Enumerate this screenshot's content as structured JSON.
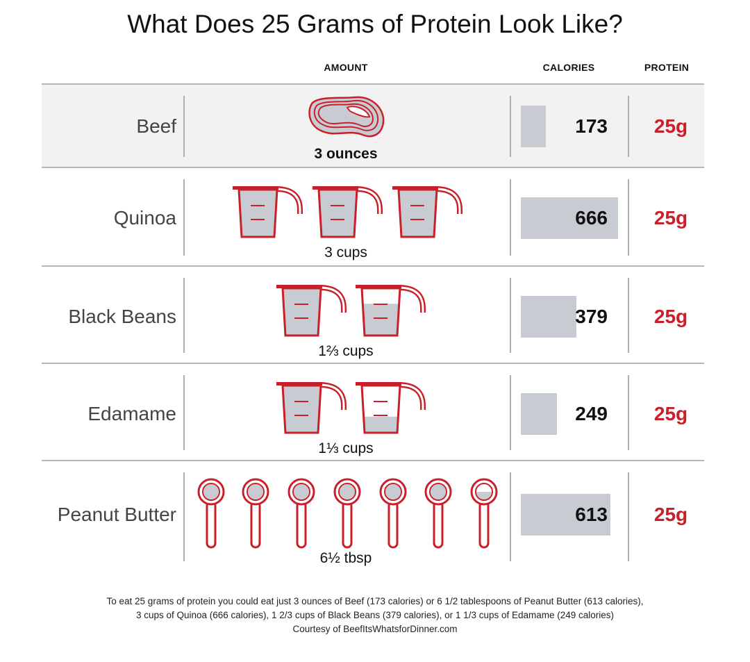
{
  "title": "What Does 25 Grams of Protein Look Like?",
  "headers": {
    "amount": "AMOUNT",
    "calories": "CALORIES",
    "protein": "PROTEIN"
  },
  "colors": {
    "accent_red": "#c8202a",
    "bar_gray": "#c8ccd2",
    "shaded_row": "#f2f2f2"
  },
  "chart_data": {
    "type": "bar",
    "title": "What Does 25 Grams of Protein Look Like?",
    "categories": [
      "Beef",
      "Quinoa",
      "Black Beans",
      "Edamame",
      "Peanut Butter"
    ],
    "series": [
      {
        "name": "CALORIES",
        "values": [
          173,
          666,
          379,
          249,
          613
        ]
      }
    ],
    "orientation": "horizontal",
    "grid": false
  },
  "rows": [
    {
      "food": "Beef",
      "amount": "3 ounces",
      "calories": "173",
      "protein": "25g",
      "icon": "steak-icon",
      "count": 1,
      "last_fill": 1
    },
    {
      "food": "Quinoa",
      "amount": "3 cups",
      "calories": "666",
      "protein": "25g",
      "icon": "measuring-cup-icon",
      "count": 3,
      "last_fill": 1
    },
    {
      "food": "Black Beans",
      "amount": "1⅔ cups",
      "calories": "379",
      "protein": "25g",
      "icon": "measuring-cup-icon",
      "count": 2,
      "last_fill": 0.667
    },
    {
      "food": "Edamame",
      "amount": "1⅓ cups",
      "calories": "249",
      "protein": "25g",
      "icon": "measuring-cup-icon",
      "count": 2,
      "last_fill": 0.333
    },
    {
      "food": "Peanut Butter",
      "amount": "6½ tbsp",
      "calories": "613",
      "protein": "25g",
      "icon": "tablespoon-icon",
      "count": 7,
      "last_fill": 0.5
    }
  ],
  "footer": {
    "line1": "To eat 25 grams of protein you could eat just 3 ounces of Beef (173 calories) or 6 1/2 tablespoons of Peanut Butter (613 calories),",
    "line2": "3 cups of Quinoa (666 calories), 1 2/3 cups of Black Beans (379 calories), or 1 1/3 cups of Edamame (249 calories)",
    "line3": "Courtesy of BeefItsWhatsforDinner.com"
  }
}
